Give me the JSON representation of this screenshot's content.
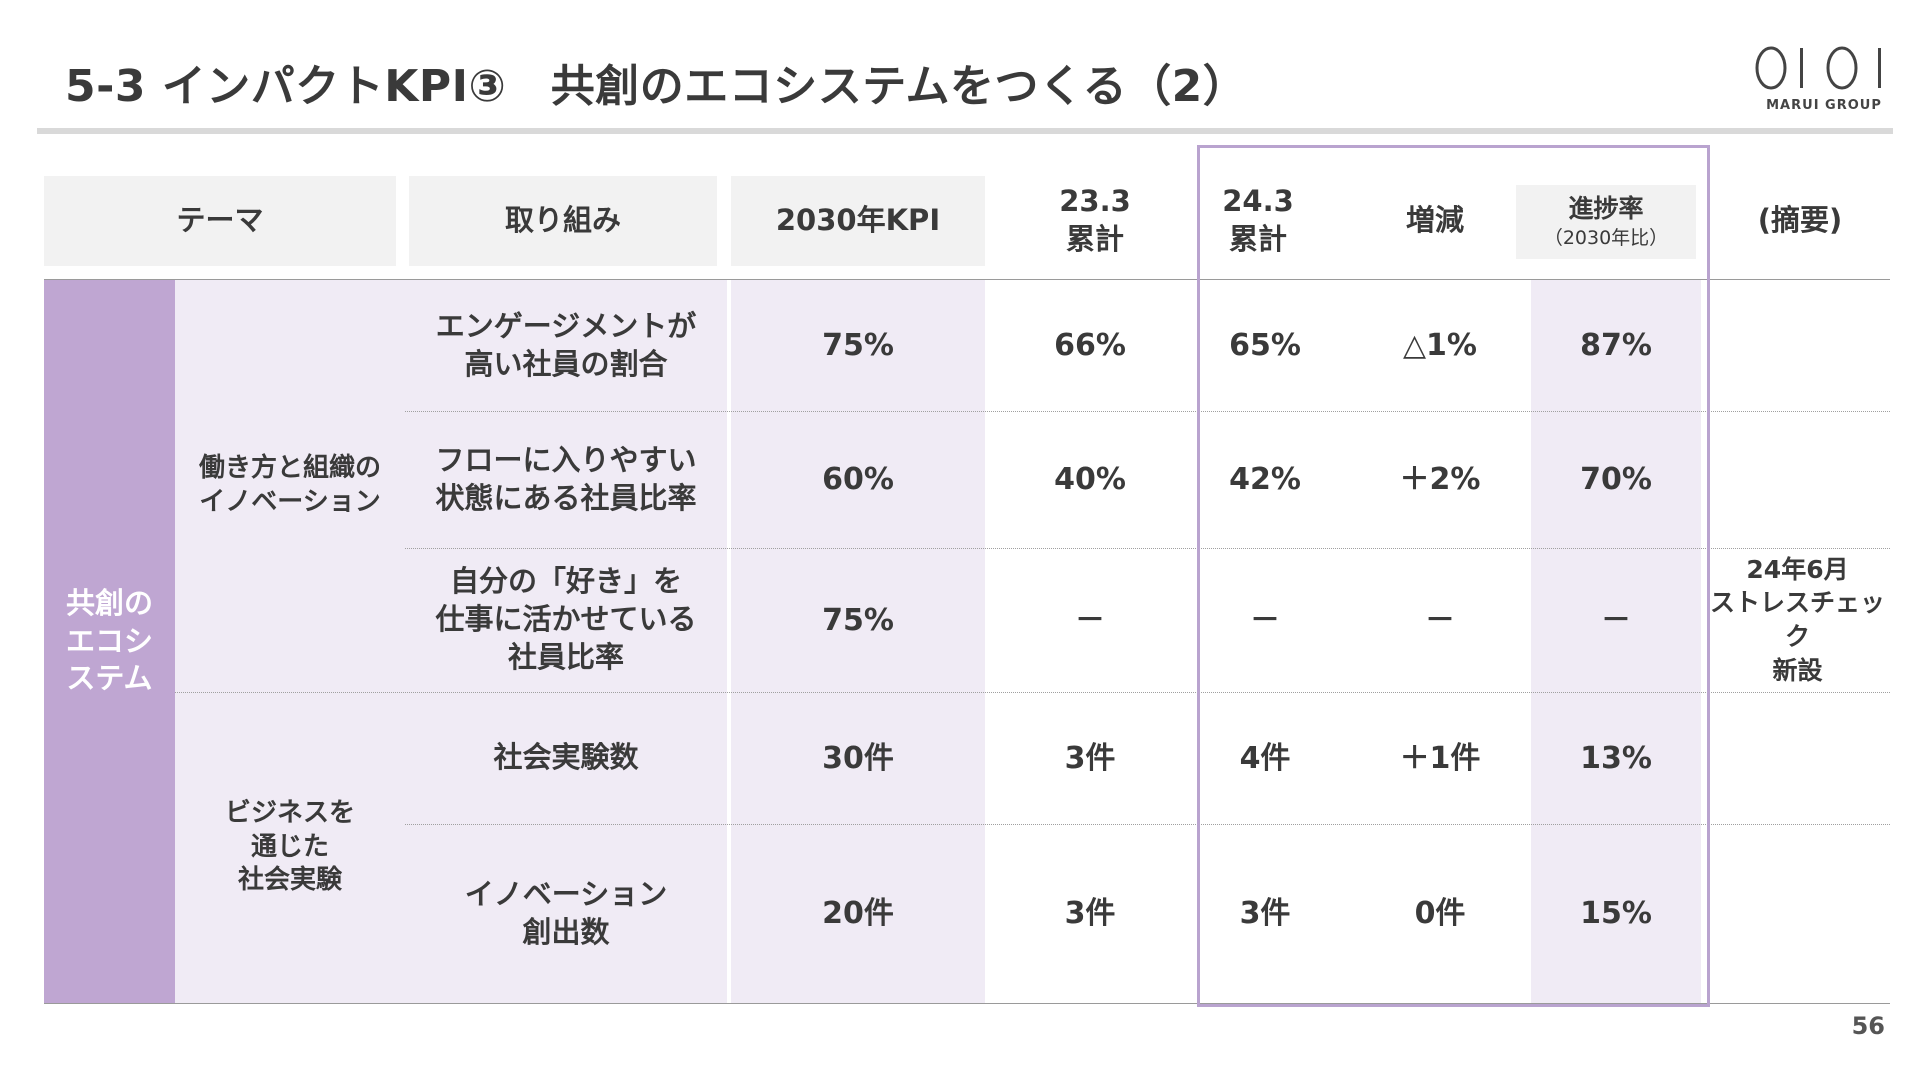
{
  "title": "5-3 インパクトKPI③　共創のエコシステムをつくる（2）",
  "logo": {
    "brand_text": "MARUI GROUP",
    "mark_name": "oioi-logo-mark"
  },
  "page_number": "56",
  "table": {
    "headers": {
      "theme": "テーマ",
      "initiative": "取り組み",
      "kpi_2030": "2030年KPI",
      "cum_23_3": "23.3\n累計",
      "cum_24_3": "24.3\n累計",
      "change": "増減",
      "progress": "進捗率",
      "progress_sub": "（2030年比）",
      "note": "(摘要)"
    },
    "theme": "共創の\nエコシ\nステム",
    "groups": [
      {
        "label": "働き方と組織の\nイノベーション"
      },
      {
        "label": "ビジネスを\n通じた\n社会実験"
      }
    ],
    "rows": [
      {
        "initiative": "エンゲージメントが\n高い社員の割合",
        "kpi": "75%",
        "c23": "66%",
        "c24": "65%",
        "change": "△1%",
        "progress": "87%",
        "note": ""
      },
      {
        "initiative": "フローに入りやすい\n状態にある社員比率",
        "kpi": "60%",
        "c23": "40%",
        "c24": "42%",
        "change": "＋2%",
        "progress": "70%",
        "note": ""
      },
      {
        "initiative": "自分の「好き」を\n仕事に活かせている\n社員比率",
        "kpi": "75%",
        "c23": "－",
        "c24": "－",
        "change": "－",
        "progress": "－",
        "note": "24年6月\nストレスチェック\n新設"
      },
      {
        "initiative": "社会実験数",
        "kpi": "30件",
        "c23": "3件",
        "c24": "4件",
        "change": "＋1件",
        "progress": "13%",
        "note": ""
      },
      {
        "initiative": "イノベーション\n創出数",
        "kpi": "20件",
        "c23": "3件",
        "c24": "3件",
        "change": "0件",
        "progress": "15%",
        "note": ""
      }
    ]
  }
}
